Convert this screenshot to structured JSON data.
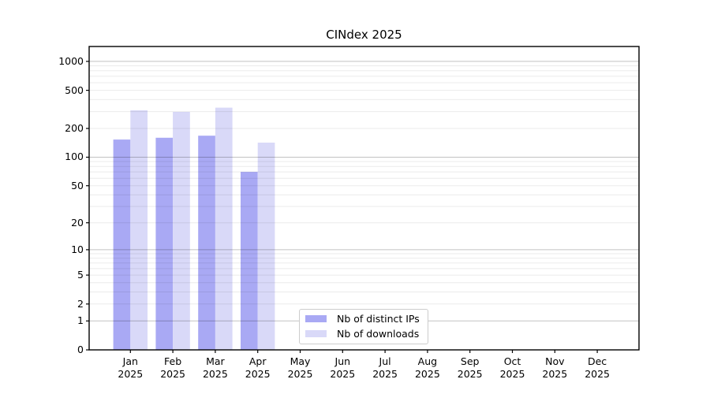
{
  "chart_data": {
    "type": "bar",
    "title": "CINdex 2025",
    "categories": [
      "Jan",
      "Feb",
      "Mar",
      "Apr",
      "May",
      "Jun",
      "Jul",
      "Aug",
      "Sep",
      "Oct",
      "Nov",
      "Dec"
    ],
    "category_year_line": "2025",
    "series": [
      {
        "name": "Nb of distinct IPs",
        "color": "#a9a9f4",
        "values": [
          153,
          160,
          168,
          70,
          null,
          null,
          null,
          null,
          null,
          null,
          null,
          null
        ]
      },
      {
        "name": "Nb of downloads",
        "color": "#d9d9f8",
        "values": [
          310,
          298,
          330,
          142,
          null,
          null,
          null,
          null,
          null,
          null,
          null,
          null
        ]
      }
    ],
    "xlabel": "",
    "ylabel": "",
    "yscale": "log1p",
    "yticks": [
      0,
      1,
      2,
      5,
      10,
      20,
      50,
      100,
      200,
      500,
      1000
    ],
    "ylim": [
      0,
      1430
    ],
    "grid": true,
    "grid_over_bars": true,
    "legend_position": "lower-center"
  },
  "colors": {
    "axis": "#000000",
    "grid_major": "rgba(0,0,0,0.24)",
    "grid_minor": "rgba(0,0,0,0.08)",
    "background": "#ffffff",
    "legend_border": "#cccccc"
  }
}
